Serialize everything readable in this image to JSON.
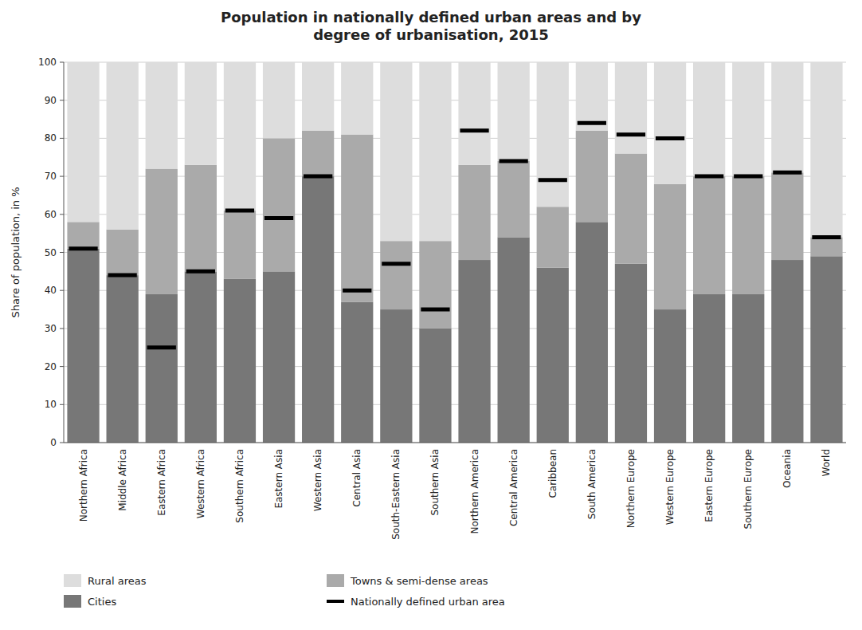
{
  "chart_data": {
    "type": "bar",
    "stacked": true,
    "title": "Population in nationally defined urban areas and by\ndegree of urbanisation, 2015",
    "y_label": "Share of population, in %",
    "categories": [
      "Northern Africa",
      "Middle Africa",
      "Eastern Africa",
      "Western Africa",
      "Southern Africa",
      "Eastern Asia",
      "Western Asia",
      "Central Asia",
      "South-Eastern Asia",
      "Southern Asia",
      "Northern America",
      "Central America",
      "Caribbean",
      "South America",
      "Northern Europe",
      "Western Europe",
      "Eastern Europe",
      "Southern Europe",
      "Oceania",
      "World"
    ],
    "series": [
      {
        "name": "Cities",
        "color": "#777777",
        "values": [
          51,
          44,
          39,
          45,
          43,
          45,
          70,
          37,
          35,
          30,
          48,
          54,
          46,
          58,
          47,
          35,
          39,
          39,
          48,
          49
        ]
      },
      {
        "name": "Towns & semi-dense areas",
        "color": "#aaaaaa",
        "values": [
          7,
          12,
          33,
          28,
          18,
          35,
          12,
          44,
          18,
          23,
          25,
          20,
          16,
          24,
          29,
          33,
          31,
          31,
          23,
          5
        ]
      },
      {
        "name": "Rural areas",
        "color": "#dddddd",
        "values": [
          42,
          44,
          28,
          27,
          39,
          20,
          18,
          19,
          47,
          47,
          27,
          26,
          38,
          18,
          24,
          32,
          30,
          30,
          29,
          46
        ]
      },
      {
        "name": "Nationally defined urban area",
        "type": "marker",
        "color": "#000000",
        "values": [
          51,
          44,
          25,
          45,
          61,
          59,
          70,
          40,
          47,
          35,
          82,
          74,
          69,
          84,
          81,
          80,
          70,
          70,
          71,
          54
        ]
      }
    ],
    "ylim": [
      0,
      100
    ],
    "yticks": [
      0,
      10,
      20,
      30,
      40,
      50,
      60,
      70,
      80,
      90,
      100
    ],
    "grid": true,
    "legend": "bottom"
  }
}
